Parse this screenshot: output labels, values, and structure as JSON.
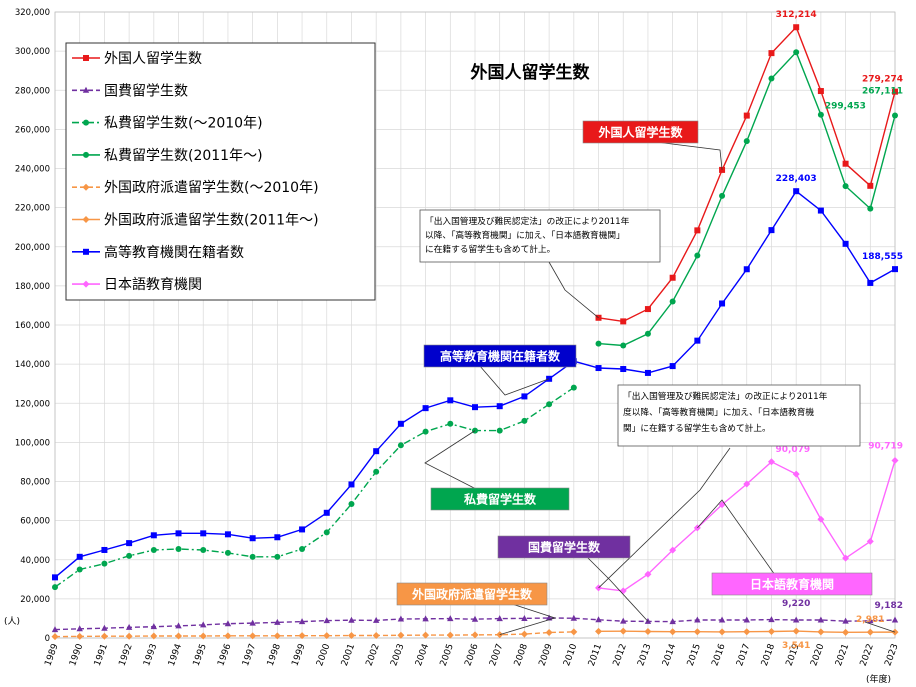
{
  "chart_data": {
    "type": "line",
    "title": "外国人留学生数",
    "y_unit": "(人)",
    "x_unit": "(年度)",
    "ylim": [
      0,
      320000
    ],
    "y_ticks": [
      "0",
      "20,000",
      "40,000",
      "60,000",
      "80,000",
      "100,000",
      "120,000",
      "140,000",
      "160,000",
      "180,000",
      "200,000",
      "220,000",
      "240,000",
      "260,000",
      "280,000",
      "300,000",
      "320,000"
    ],
    "x": [
      "1989",
      "1990",
      "1991",
      "1992",
      "1993",
      "1994",
      "1995",
      "1996",
      "1997",
      "1998",
      "1999",
      "2000",
      "2001",
      "2002",
      "2003",
      "2004",
      "2005",
      "2006",
      "2007",
      "2008",
      "2009",
      "2010",
      "2011",
      "2012",
      "2013",
      "2014",
      "2015",
      "2016",
      "2017",
      "2018",
      "2019",
      "2020",
      "2021",
      "2022",
      "2023"
    ],
    "grid": true,
    "legend_position": "top-left",
    "series": [
      {
        "name": "外国人留学生数",
        "color": "#e8191a",
        "marker": "square",
        "dash": "solid",
        "values": [
          null,
          null,
          null,
          null,
          null,
          null,
          null,
          null,
          null,
          null,
          null,
          null,
          null,
          null,
          null,
          null,
          null,
          null,
          null,
          null,
          null,
          null,
          163697,
          161848,
          168145,
          184155,
          208379,
          239287,
          267042,
          298980,
          312214,
          279597,
          242444,
          231146,
          279274
        ]
      },
      {
        "name": "国費留学生数",
        "color": "#7030a0",
        "marker": "triangle",
        "dash": "dash",
        "values": [
          4300,
          4700,
          5000,
          5400,
          5800,
          6200,
          6700,
          7300,
          7600,
          8000,
          8400,
          8900,
          9100,
          9000,
          9700,
          9800,
          9900,
          9600,
          9900,
          10000,
          10200,
          10100,
          9300,
          8600,
          8500,
          8400,
          9200,
          9200,
          9200,
          9400,
          9220,
          9200,
          8600,
          8800,
          9182
        ]
      },
      {
        "name": "私費留学生数(～2010年)",
        "color": "#00a64f",
        "marker": "circle",
        "dash": "dashdot",
        "values": [
          26000,
          35000,
          38000,
          42000,
          45000,
          45500,
          45000,
          43500,
          41500,
          41500,
          45500,
          54000,
          68500,
          85000,
          98500,
          105500,
          109500,
          106000,
          106000,
          111000,
          119500,
          128000,
          null,
          null,
          null,
          null,
          null,
          null,
          null,
          null,
          null,
          null,
          null,
          null,
          null
        ]
      },
      {
        "name": "私費留学生数(2011年～)",
        "color": "#00a64f",
        "marker": "circle",
        "dash": "solid",
        "values": [
          null,
          null,
          null,
          null,
          null,
          null,
          null,
          null,
          null,
          null,
          null,
          null,
          null,
          null,
          null,
          null,
          null,
          null,
          null,
          null,
          null,
          null,
          150500,
          149500,
          155500,
          172000,
          195500,
          226000,
          254000,
          286000,
          299453,
          267500,
          231000,
          219500,
          267111
        ]
      },
      {
        "name": "外国政府派遣留学生数(～2010年)",
        "color": "#f79646",
        "marker": "diamond",
        "dash": "dash",
        "values": [
          700,
          800,
          900,
          900,
          1000,
          1000,
          1000,
          1100,
          1100,
          1100,
          1200,
          1200,
          1300,
          1300,
          1400,
          1500,
          1500,
          1600,
          1700,
          2000,
          2800,
          3100,
          null,
          null,
          null,
          null,
          null,
          null,
          null,
          null,
          null,
          null,
          null,
          null,
          null
        ]
      },
      {
        "name": "外国政府派遣留学生数(2011年～)",
        "color": "#f79646",
        "marker": "diamond",
        "dash": "solid",
        "values": [
          null,
          null,
          null,
          null,
          null,
          null,
          null,
          null,
          null,
          null,
          null,
          null,
          null,
          null,
          null,
          null,
          null,
          null,
          null,
          null,
          null,
          null,
          3400,
          3500,
          3300,
          3200,
          3200,
          3100,
          3200,
          3300,
          3541,
          3100,
          2900,
          2981,
          3000
        ]
      },
      {
        "name": "高等教育機関在籍者数",
        "color": "#0000ff",
        "marker": "square",
        "dash": "solid",
        "values": [
          31000,
          41500,
          45000,
          48500,
          52500,
          53500,
          53500,
          53000,
          51000,
          51500,
          55500,
          64000,
          78500,
          95500,
          109500,
          117500,
          121500,
          118000,
          118500,
          123500,
          132500,
          141500,
          138000,
          137500,
          135500,
          139000,
          152000,
          171000,
          188500,
          208500,
          228403,
          218500,
          201500,
          181500,
          188555
        ]
      },
      {
        "name": "日本語教育機関",
        "color": "#ff66ff",
        "marker": "diamond",
        "dash": "solid",
        "values": [
          null,
          null,
          null,
          null,
          null,
          null,
          null,
          null,
          null,
          null,
          null,
          null,
          null,
          null,
          null,
          null,
          null,
          null,
          null,
          null,
          null,
          null,
          25600,
          24100,
          32600,
          44900,
          56300,
          68200,
          78700,
          90079,
          83800,
          60700,
          40800,
          49400,
          90719
        ]
      }
    ],
    "value_labels": [
      {
        "text": "312,214",
        "series": 0,
        "color": "#e8191a"
      },
      {
        "text": "279,274",
        "series": 0,
        "color": "#e8191a"
      },
      {
        "text": "299,453",
        "series": 3,
        "color": "#00a64f"
      },
      {
        "text": "267,111",
        "series": 3,
        "color": "#00a64f"
      },
      {
        "text": "228,403",
        "series": 6,
        "color": "#0000ff"
      },
      {
        "text": "188,555",
        "series": 6,
        "color": "#0000ff"
      },
      {
        "text": "90,079",
        "series": 7,
        "color": "#ff66ff"
      },
      {
        "text": "90,719",
        "series": 7,
        "color": "#ff66ff"
      },
      {
        "text": "9,220",
        "series": 1,
        "color": "#7030a0"
      },
      {
        "text": "9,182",
        "series": 1,
        "color": "#7030a0"
      },
      {
        "text": "3,541",
        "series": 5,
        "color": "#f79646"
      },
      {
        "text": "2,981",
        "series": 5,
        "color": "#f79646"
      }
    ],
    "callouts": [
      {
        "text": "外国人留学生数",
        "fill": "#e8191a"
      },
      {
        "text": "高等教育機関在籍者数",
        "fill": "#0000cc"
      },
      {
        "text": "私費留学生数",
        "fill": "#00a64f"
      },
      {
        "text": "国費留学生数",
        "fill": "#7030a0"
      },
      {
        "text": "外国政府派遣留学生数",
        "fill": "#f79646"
      },
      {
        "text": "日本語教育機関",
        "fill": "#ff66ff"
      }
    ],
    "notes": [
      [
        "「出入国管理及び難民認定法」の改正により2011年",
        "以降、「高等教育機関」に加え、「日本語教育機関」",
        "に在籍する留学生も含めて計上。"
      ],
      [
        "「出入国管理及び難民認定法」の改正により2011年",
        "度以降、「高等教育機関」に加え、「日本語教育機",
        "関」に在籍する留学生も含めて計上。"
      ]
    ]
  }
}
